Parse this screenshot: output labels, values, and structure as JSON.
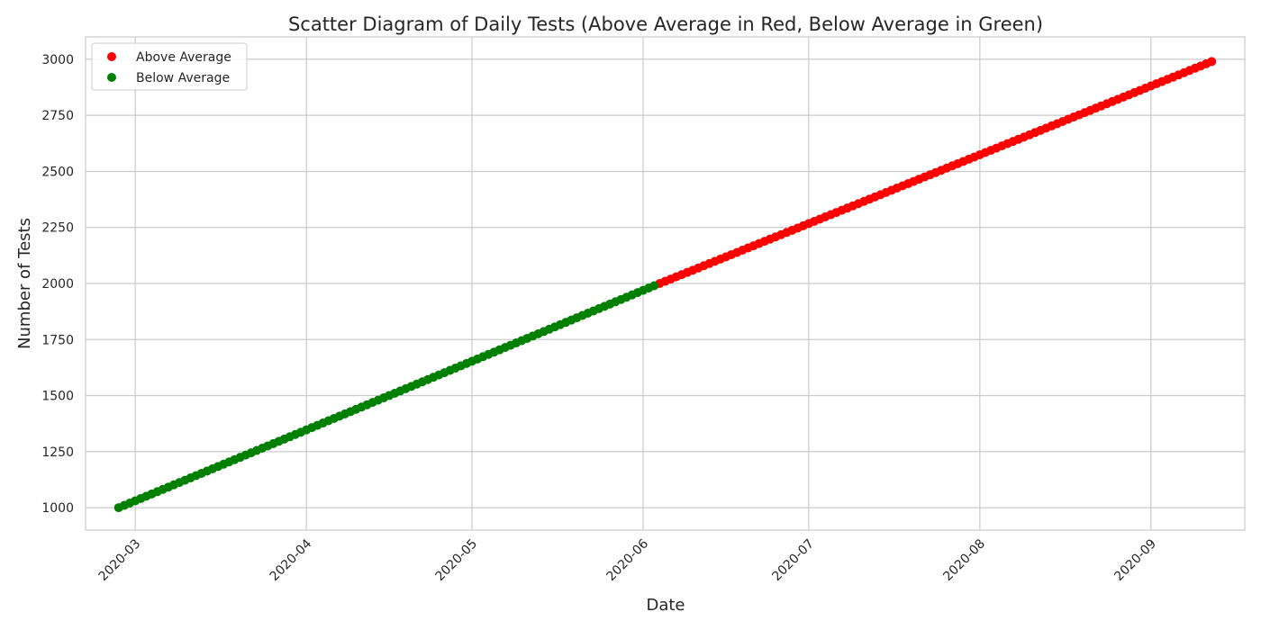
{
  "chart_data": {
    "type": "scatter",
    "title": "Scatter Diagram of Daily Tests (Above Average in Red, Below Average in Green)",
    "xlabel": "Date",
    "ylabel": "Number of Tests",
    "x_start": "2020-02-27",
    "x_end": "2020-09-12",
    "xlim": [
      "2020-02-21",
      "2020-09-18"
    ],
    "ylim": [
      900,
      3100
    ],
    "xticks": [
      "2020-03",
      "2020-04",
      "2020-05",
      "2020-06",
      "2020-07",
      "2020-08",
      "2020-09"
    ],
    "yticks": [
      1000,
      1250,
      1500,
      1750,
      2000,
      2250,
      2500,
      2750,
      3000
    ],
    "grid": true,
    "legend_position": "top-left",
    "series": [
      {
        "name": "Above Average",
        "color": "#ff0000",
        "x_range": [
          "2020-06-04",
          "2020-09-12"
        ],
        "y_range": [
          2000,
          2990
        ]
      },
      {
        "name": "Below Average",
        "color": "#008000",
        "x_range": [
          "2020-02-27",
          "2020-06-03"
        ],
        "y_range": [
          1000,
          1990
        ]
      }
    ]
  }
}
